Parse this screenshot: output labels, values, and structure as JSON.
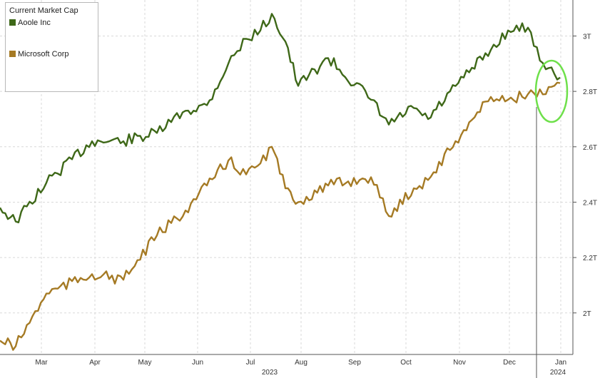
{
  "chart_data": {
    "type": "line",
    "title": "",
    "xlabel": "",
    "ylabel": "",
    "legend_title": "Current Market Cap",
    "legend_placement": "top-left",
    "y_axis_side": "right",
    "ylim": [
      1.85,
      3.13
    ],
    "y_ticks": [
      "2T",
      "2.2T",
      "2.4T",
      "2.6T",
      "2.8T",
      "3T"
    ],
    "y_tick_values": [
      2.0,
      2.2,
      2.4,
      2.6,
      2.8,
      3.0
    ],
    "x_ticks": [
      "Mar",
      "Apr",
      "May",
      "Jun",
      "Jul",
      "Aug",
      "Sep",
      "Oct",
      "Nov",
      "Dec",
      "Jan"
    ],
    "year_labels": [
      "2023",
      "2024"
    ],
    "grid": true,
    "x": [
      "Feb 20",
      "Mar 1",
      "Mar 15",
      "Apr 1",
      "Apr 15",
      "May 1",
      "May 15",
      "Jun 1",
      "Jun 15",
      "Jul 1",
      "Jul 10",
      "Jul 18",
      "Jul 25",
      "Aug 1",
      "Aug 15",
      "Sep 1",
      "Sep 15",
      "Oct 1",
      "Oct 15",
      "Nov 1",
      "Nov 15",
      "Dec 1",
      "Dec 15",
      "Jan 1",
      "Jan 5"
    ],
    "series": [
      {
        "name": "Aoole Inc",
        "color": "#3e6818",
        "values": [
          2.38,
          2.33,
          2.47,
          2.62,
          2.62,
          2.65,
          2.73,
          2.75,
          2.9,
          2.99,
          3.02,
          3.08,
          2.98,
          2.82,
          2.92,
          2.77,
          2.68,
          2.74,
          2.7,
          2.85,
          2.95,
          3.02,
          3.03,
          2.88,
          2.85
        ]
      },
      {
        "name": "Microsoft Corp",
        "color": "#a57a24",
        "values": [
          1.9,
          1.88,
          2.07,
          2.14,
          2.12,
          2.28,
          2.37,
          2.46,
          2.55,
          2.5,
          2.54,
          2.6,
          2.45,
          2.4,
          2.46,
          2.49,
          2.35,
          2.45,
          2.48,
          2.66,
          2.78,
          2.77,
          2.79,
          2.79,
          2.83
        ]
      }
    ],
    "annotations": [
      {
        "type": "ellipse",
        "color": "#6ee04a",
        "around": "Jan 2024 values"
      }
    ]
  }
}
